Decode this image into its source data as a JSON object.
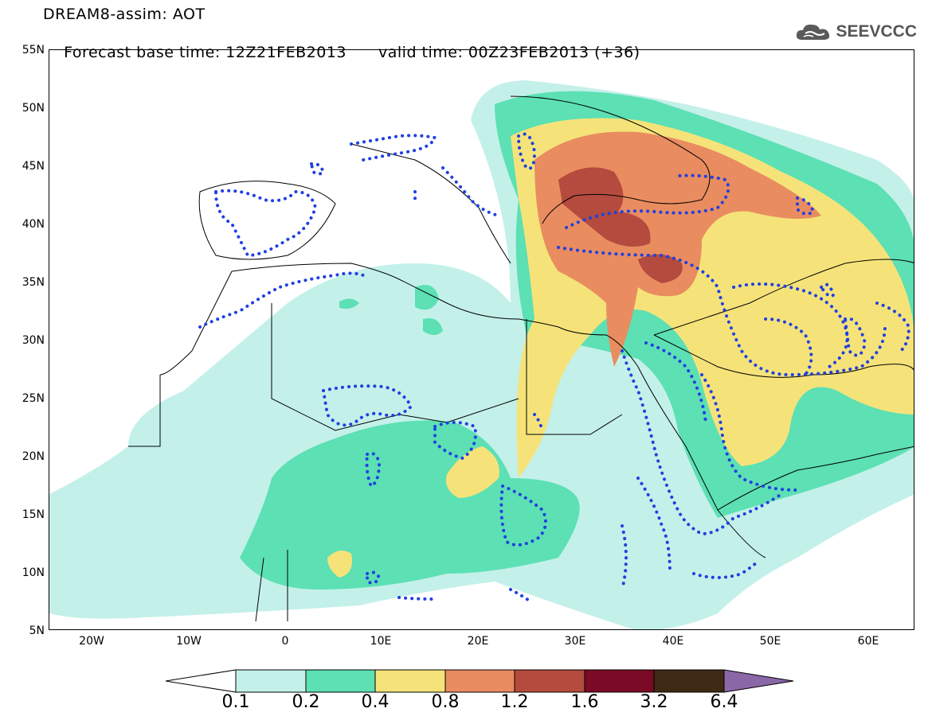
{
  "header": {
    "line1": "DREAM8-assim: AOT",
    "base_time": "Forecast base time: 12Z21FEB2013",
    "valid_time": "valid time: 00Z23FEB2013 (+36)"
  },
  "logo": {
    "text": "SEEVCCC",
    "icon": "cloud-icon"
  },
  "map": {
    "lat_ticks": [
      "55N",
      "50N",
      "45N",
      "40N",
      "35N",
      "30N",
      "25N",
      "20N",
      "15N",
      "10N",
      "5N"
    ],
    "lon_ticks": [
      "20W",
      "10W",
      "0",
      "10E",
      "20E",
      "30E",
      "40E",
      "50E",
      "60E"
    ],
    "contour_line_color": "#2040e0",
    "border_color": "#000000"
  },
  "legend": {
    "labels": [
      "0.1",
      "0.2",
      "0.4",
      "0.8",
      "1.2",
      "1.6",
      "3.2",
      "6.4"
    ],
    "colors": [
      "#ffffff",
      "#c4f0ea",
      "#5ce0b4",
      "#f5e37a",
      "#e98c60",
      "#b44b3e",
      "#7a0a25",
      "#3e2a14",
      "#8a68a8"
    ]
  }
}
